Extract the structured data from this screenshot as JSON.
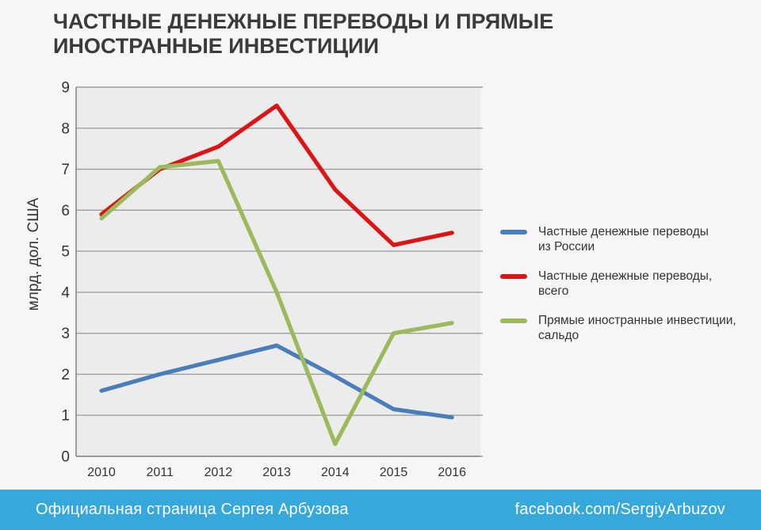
{
  "title": "ЧАСТНЫЕ ДЕНЕЖНЫЕ ПЕРЕВОДЫ И ПРЯМЫЕ ИНОСТРАННЫЕ ИНВЕСТИЦИИ",
  "colors": {
    "page_bg": "#f6f6f6",
    "plot_bg": "#ececec",
    "gridline": "#9e9e9e",
    "axis": "#8a8a8a",
    "title_text": "#3b3b3b",
    "tick_text": "#333333",
    "footer_bg": "#37a8dc",
    "footer_text": "#ffffff",
    "series_blue": "#4a7ebb",
    "series_red": "#dd1414",
    "series_green": "#9aba5c"
  },
  "chart_data": {
    "type": "line",
    "x": [
      2010,
      2011,
      2012,
      2013,
      2014,
      2015,
      2016
    ],
    "ylabel": "млрд. дол. США",
    "ylim": [
      0,
      9
    ],
    "yticks": [
      0,
      1,
      2,
      3,
      4,
      5,
      6,
      7,
      8,
      9
    ],
    "grid": true,
    "legend_position": "right",
    "series": [
      {
        "name": "Частные денежные переводы из России",
        "color": "#4a7ebb",
        "values": [
          1.6,
          2.0,
          2.35,
          2.7,
          1.95,
          1.15,
          0.95
        ]
      },
      {
        "name": "Частные денежные переводы, всего",
        "color": "#dd1414",
        "values": [
          5.9,
          7.0,
          7.55,
          8.55,
          6.5,
          5.15,
          5.45
        ]
      },
      {
        "name": "Прямые иностранные инвестиции, сальдо",
        "color": "#9aba5c",
        "values": [
          5.8,
          7.05,
          7.2,
          4.0,
          0.3,
          3.0,
          3.25
        ]
      }
    ]
  },
  "legend": {
    "items": [
      {
        "color": "#4a7ebb",
        "lines": [
          "Частные денежные переводы",
          "из России"
        ]
      },
      {
        "color": "#dd1414",
        "lines": [
          "Частные денежные переводы,",
          "всего"
        ]
      },
      {
        "color": "#9aba5c",
        "lines": [
          "Прямые иностранные инвестиции,",
          "сальдо"
        ]
      }
    ]
  },
  "footer": {
    "left_text": "Официальная страница Сергея Арбузова",
    "right_text": "facebook.com/SergiyArbuzov"
  }
}
